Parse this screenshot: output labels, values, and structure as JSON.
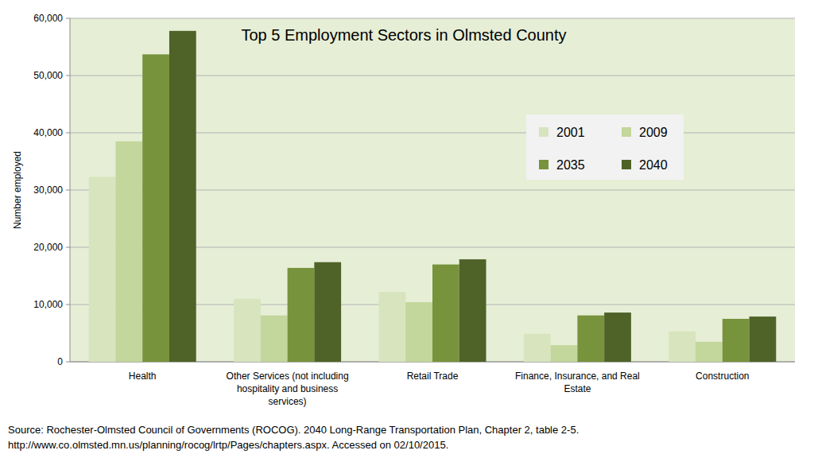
{
  "chart_data": {
    "type": "bar",
    "title": "Top 5 Employment Sectors in Olmsted County",
    "y_label": "Number employed",
    "annotations": [
      "Source: Rochester-Olmsted Council of Governments (ROCOG). 2040 Long-Range Transportation Plan, Chapter 2, table 2-5.",
      "http://www.co.olmsted.mn.us/planning/rocog/lrtp/Pages/chapters.aspx. Accessed on 02/10/2015."
    ],
    "categories": [
      "Health",
      "Other Services (not including hospitality and business services)",
      "Retail Trade",
      "Finance, Insurance, and Real Estate",
      "Construction"
    ],
    "series": [
      {
        "name": "2001",
        "color": "#d7e4bd",
        "values": [
          32300,
          11000,
          12200,
          4900,
          5300
        ]
      },
      {
        "name": "2009",
        "color": "#c3d69b",
        "values": [
          38500,
          8100,
          10400,
          2900,
          3500
        ]
      },
      {
        "name": "2035",
        "color": "#77933c",
        "values": [
          53700,
          16400,
          17000,
          8100,
          7500
        ]
      },
      {
        "name": "2040",
        "color": "#4f6228",
        "values": [
          57800,
          17400,
          17900,
          8600,
          7900
        ]
      }
    ],
    "ylim": [
      0,
      60000
    ],
    "yticks": [
      0,
      {
        "value": 10000,
        "label": "10,000"
      },
      {
        "value": 20000,
        "label": "20,000"
      },
      {
        "value": 30000,
        "label": "30,000"
      },
      {
        "value": 40000,
        "label": "40,000"
      },
      {
        "value": 50000,
        "label": "50,000"
      },
      {
        "value": 60000,
        "label": "60,000"
      }
    ],
    "grid": true,
    "legend": "right"
  }
}
